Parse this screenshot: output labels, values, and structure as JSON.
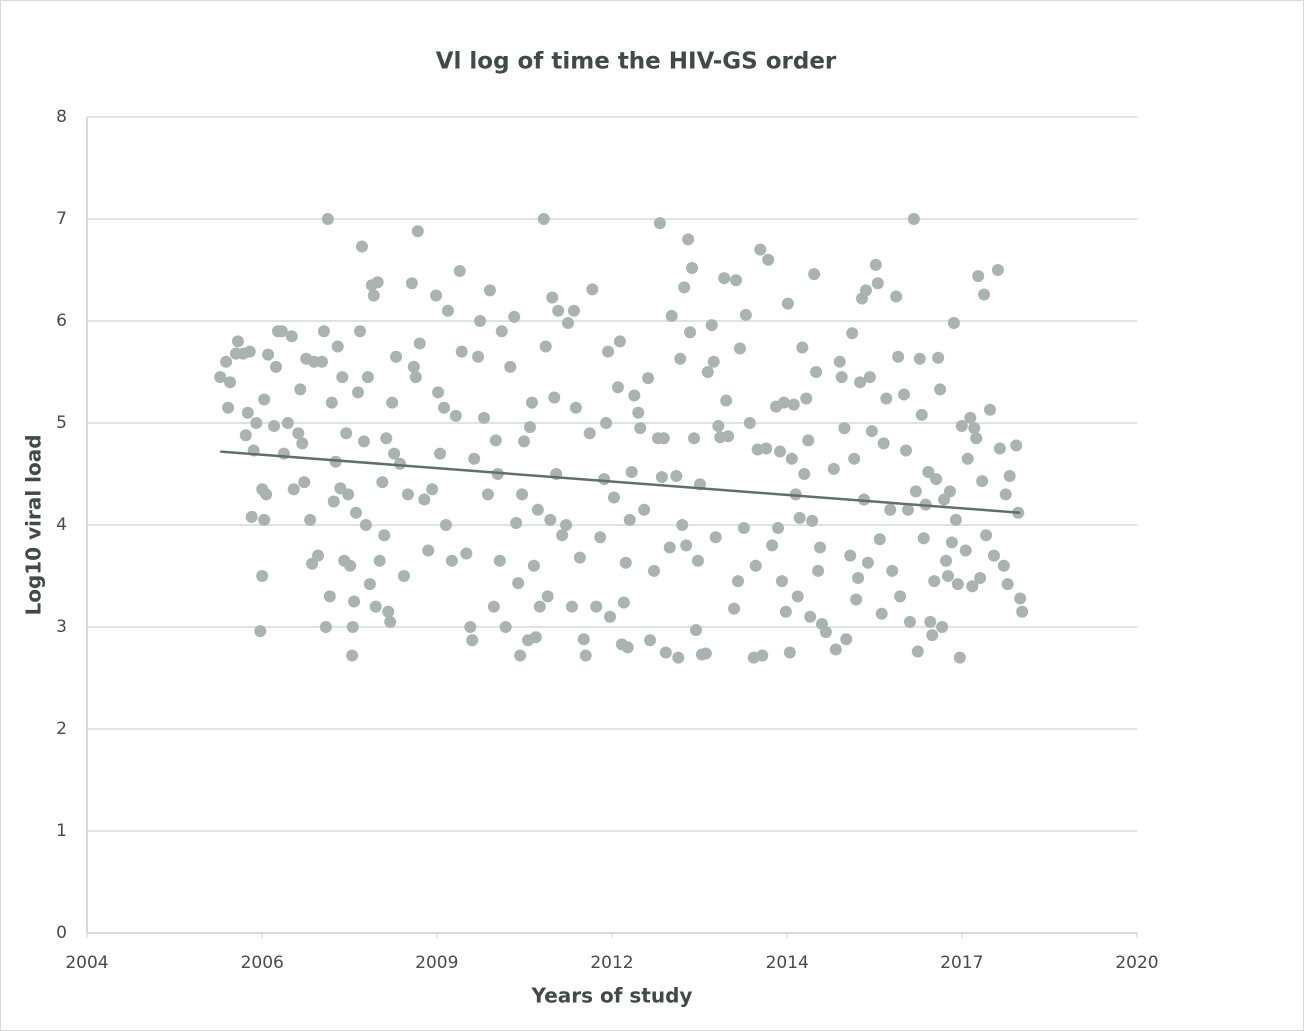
{
  "chart_data": {
    "type": "scatter",
    "title": "Vl log of time the HIV-GS order",
    "xlabel": "Years of study",
    "ylabel": "Log10 viral load",
    "xlim": [
      2004,
      2020
    ],
    "xticks": [
      2004,
      {
        "value": 2006.67,
        "label": "2006"
      },
      {
        "value": 2009.33,
        "label": "2009"
      },
      2012,
      {
        "value": 2014.67,
        "label": "2014"
      },
      {
        "value": 2017.33,
        "label": "2017"
      },
      2020
    ],
    "ylim": [
      0,
      8
    ],
    "yticks": [
      0,
      1,
      2,
      3,
      4,
      5,
      6,
      7,
      8
    ],
    "grid": true,
    "color": "#a9b4b0",
    "x": [
      2006.03,
      2006.12,
      2006.15,
      2006.18,
      2006.3,
      2006.27,
      2006.38,
      2006.48,
      2006.45,
      2006.42,
      2006.54,
      2006.58,
      2006.51,
      2006.64,
      2006.67,
      2006.7,
      2006.67,
      2006.73,
      2006.7,
      2006.76,
      2006.85,
      2006.91,
      2006.97,
      2006.88,
      2007.0,
      2007.06,
      2007.12,
      2007.15,
      2007.22,
      2007.25,
      2007.28,
      2007.31,
      2007.34,
      2007.4,
      2007.43,
      2007.46,
      2007.52,
      2007.58,
      2007.61,
      2007.64,
      2007.67,
      2007.7,
      2007.73,
      2007.76,
      2007.79,
      2007.82,
      2007.86,
      2007.89,
      2007.92,
      2007.95,
      2007.98,
      2008.01,
      2008.04,
      2008.05,
      2008.07,
      2008.1,
      2008.13,
      2008.16,
      2008.19,
      2008.22,
      2008.25,
      2008.28,
      2008.31,
      2008.34,
      2008.37,
      2008.4,
      2008.43,
      2008.46,
      2008.5,
      2008.53,
      2008.56,
      2008.59,
      2008.62,
      2008.65,
      2008.68,
      2008.71,
      2008.77,
      2008.83,
      2008.89,
      2008.95,
      2008.98,
      2009.01,
      2009.04,
      2009.07,
      2009.14,
      2009.2,
      2009.26,
      2009.32,
      2009.35,
      2009.38,
      2009.44,
      2009.47,
      2009.5,
      2009.56,
      2009.62,
      2009.68,
      2009.71,
      2009.78,
      2009.84,
      2009.87,
      2009.9,
      2009.96,
      2009.99,
      2010.05,
      2010.11,
      2010.14,
      2010.2,
      2010.23,
      2010.26,
      2010.29,
      2010.32,
      2010.38,
      2010.45,
      2010.51,
      2010.54,
      2010.57,
      2010.6,
      2010.63,
      2010.66,
      2010.72,
      2010.75,
      2010.78,
      2010.81,
      2010.84,
      2010.87,
      2010.9,
      2010.96,
      2010.99,
      2011.02,
      2011.06,
      2011.09,
      2011.12,
      2011.15,
      2011.18,
      2011.24,
      2011.3,
      2011.33,
      2011.39,
      2011.42,
      2011.45,
      2011.51,
      2011.57,
      2011.6,
      2011.66,
      2011.7,
      2011.76,
      2011.82,
      2011.88,
      2011.91,
      2011.94,
      2011.97,
      2012.03,
      2012.09,
      2012.12,
      2012.15,
      2012.18,
      2012.21,
      2012.24,
      2012.27,
      2012.3,
      2012.34,
      2012.4,
      2012.43,
      2012.49,
      2012.55,
      2012.58,
      2012.64,
      2012.7,
      2012.73,
      2012.76,
      2012.79,
      2012.82,
      2012.88,
      2012.91,
      2012.98,
      2013.01,
      2013.04,
      2013.07,
      2013.1,
      2013.13,
      2013.16,
      2013.19,
      2013.22,
      2013.25,
      2013.28,
      2013.31,
      2013.34,
      2013.37,
      2013.43,
      2013.46,
      2013.52,
      2013.55,
      2013.58,
      2013.62,
      2013.65,
      2013.71,
      2013.74,
      2013.77,
      2013.86,
      2013.89,
      2013.92,
      2013.95,
      2014.01,
      2014.04,
      2014.1,
      2014.16,
      2014.19,
      2014.22,
      2014.26,
      2014.29,
      2014.35,
      2014.38,
      2014.44,
      2014.5,
      2014.53,
      2014.56,
      2014.59,
      2014.62,
      2014.65,
      2014.68,
      2014.71,
      2014.74,
      2014.77,
      2014.8,
      2014.83,
      2014.86,
      2014.9,
      2014.93,
      2014.96,
      2014.99,
      2015.02,
      2015.05,
      2015.08,
      2015.11,
      2015.14,
      2015.17,
      2015.2,
      2015.26,
      2015.38,
      2015.41,
      2015.47,
      2015.5,
      2015.54,
      2015.57,
      2015.63,
      2015.66,
      2015.69,
      2015.72,
      2015.75,
      2015.78,
      2015.81,
      2015.84,
      2015.87,
      2015.9,
      2015.93,
      2015.96,
      2016.02,
      2016.05,
      2016.08,
      2016.11,
      2016.14,
      2016.18,
      2016.24,
      2016.27,
      2016.33,
      2016.36,
      2016.39,
      2016.45,
      2016.48,
      2016.51,
      2016.54,
      2016.6,
      2016.63,
      2016.66,
      2016.69,
      2016.72,
      2016.75,
      2016.78,
      2016.82,
      2016.85,
      2016.88,
      2016.91,
      2016.94,
      2016.97,
      2017.0,
      2017.03,
      2017.06,
      2017.09,
      2017.12,
      2017.15,
      2017.18,
      2017.21,
      2017.24,
      2017.27,
      2017.3,
      2017.33,
      2017.39,
      2017.42,
      2017.46,
      2017.49,
      2017.52,
      2017.55,
      2017.58,
      2017.61,
      2017.64,
      2017.67,
      2017.7,
      2017.76,
      2017.82,
      2017.88,
      2017.91,
      2017.97,
      2018.0,
      2018.03,
      2018.06,
      2018.16,
      2018.19,
      2018.22,
      2018.25
    ],
    "values": [
      5.45,
      5.6,
      5.15,
      5.4,
      5.8,
      5.68,
      5.68,
      5.7,
      5.1,
      4.88,
      4.73,
      5.0,
      4.08,
      2.96,
      3.5,
      4.05,
      4.35,
      4.3,
      5.23,
      5.67,
      4.97,
      5.9,
      5.9,
      5.55,
      4.7,
      5.0,
      5.85,
      4.35,
      4.9,
      5.33,
      4.8,
      4.42,
      5.63,
      4.05,
      3.62,
      5.6,
      3.7,
      5.6,
      5.9,
      3.0,
      7.0,
      3.3,
      5.2,
      4.23,
      4.62,
      5.75,
      4.36,
      5.45,
      3.65,
      4.9,
      4.3,
      3.6,
      2.72,
      3.0,
      3.25,
      4.12,
      5.3,
      5.9,
      6.73,
      4.82,
      4.0,
      5.45,
      3.42,
      6.35,
      6.25,
      3.2,
      6.38,
      3.65,
      4.42,
      3.9,
      4.85,
      3.15,
      3.05,
      5.2,
      4.7,
      5.65,
      4.6,
      3.5,
      4.3,
      6.37,
      5.55,
      5.45,
      6.88,
      5.78,
      4.25,
      3.75,
      4.35,
      6.25,
      5.3,
      4.7,
      5.15,
      4.0,
      6.1,
      3.65,
      5.07,
      6.49,
      5.7,
      3.72,
      3.0,
      2.87,
      4.65,
      5.65,
      6.0,
      5.05,
      4.3,
      6.3,
      3.2,
      4.83,
      4.5,
      3.65,
      5.9,
      3.0,
      5.55,
      6.04,
      4.02,
      3.43,
      2.72,
      4.3,
      4.82,
      2.87,
      4.96,
      5.2,
      3.6,
      2.9,
      4.15,
      3.2,
      7.0,
      5.75,
      3.3,
      4.05,
      6.23,
      5.25,
      4.5,
      6.1,
      3.9,
      4.0,
      5.98,
      3.2,
      6.1,
      5.15,
      3.68,
      2.88,
      2.72,
      4.9,
      6.31,
      3.2,
      3.88,
      4.45,
      5.0,
      5.7,
      3.1,
      4.27,
      5.35,
      5.8,
      2.83,
      3.24,
      3.63,
      2.8,
      4.05,
      4.52,
      5.27,
      5.1,
      4.95,
      4.15,
      5.44,
      2.87,
      3.55,
      4.85,
      6.96,
      4.47,
      4.85,
      2.75,
      3.78,
      6.05,
      4.48,
      2.7,
      5.63,
      4.0,
      6.33,
      3.8,
      6.8,
      5.89,
      6.52,
      4.85,
      2.97,
      3.65,
      4.4,
      2.73,
      2.74,
      5.5,
      5.96,
      5.6,
      3.88,
      4.97,
      4.86,
      6.42,
      5.22,
      4.87,
      3.18,
      6.4,
      3.45,
      5.73,
      3.97,
      6.06,
      5.0,
      2.7,
      3.6,
      4.74,
      6.7,
      2.72,
      4.75,
      6.6,
      3.8,
      5.16,
      3.97,
      4.72,
      3.45,
      5.2,
      3.15,
      6.17,
      2.75,
      4.65,
      5.18,
      4.3,
      3.3,
      4.07,
      5.74,
      4.5,
      5.24,
      4.83,
      3.1,
      4.04,
      6.46,
      5.5,
      3.55,
      3.78,
      3.03,
      2.95,
      4.55,
      2.78,
      5.6,
      5.45,
      4.95,
      2.88,
      3.7,
      5.88,
      4.65,
      3.27,
      3.48,
      5.4,
      6.22,
      4.25,
      6.3,
      3.63,
      5.45,
      4.92,
      6.55,
      6.37,
      3.86,
      3.13,
      4.8,
      5.24,
      4.15,
      3.55,
      6.24,
      5.65,
      3.3,
      5.28,
      4.73,
      4.15,
      3.05,
      7.0,
      4.33,
      2.76,
      5.63,
      5.08,
      3.87,
      4.2,
      4.52,
      3.05,
      2.92,
      3.45,
      4.45,
      5.64,
      5.33,
      3.0,
      4.25,
      3.65,
      3.5,
      4.33,
      3.83,
      5.98,
      4.05,
      3.42,
      2.7,
      4.97,
      3.75,
      4.65,
      5.05,
      3.4,
      4.95,
      4.85,
      6.44,
      3.48,
      4.43,
      6.26,
      3.9,
      5.13,
      3.7,
      6.5,
      4.75,
      3.6,
      4.3,
      3.42,
      4.48,
      4.78,
      4.12,
      3.28,
      3.15
    ],
    "trendline": {
      "x": [
        2006.03,
        2018.22
      ],
      "values": [
        4.72,
        4.12
      ],
      "color": "#5f706c"
    }
  }
}
